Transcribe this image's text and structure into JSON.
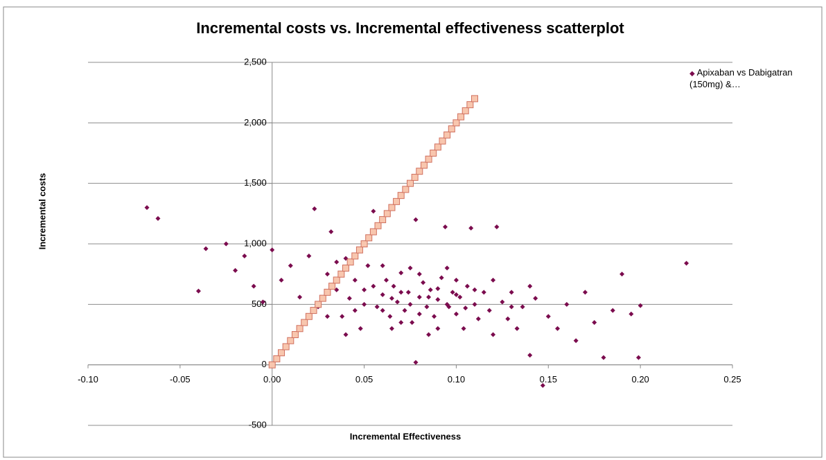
{
  "chart_data": {
    "type": "scatter",
    "title": "Incremental costs vs. Incremental effectiveness scatterplot",
    "x_label": "Incremental  Effectiveness",
    "y_label": "Incremental costs",
    "xlim": [
      -0.1,
      0.25
    ],
    "ylim": [
      -500,
      2500
    ],
    "xticks": [
      {
        "value": -0.1,
        "label": "-0.10"
      },
      -0.05,
      {
        "value": 0.0,
        "label": "0.00"
      },
      0.05,
      {
        "value": 0.1,
        "label": "0.10"
      },
      0.15,
      {
        "value": 0.2,
        "label": "0.20"
      },
      0.25
    ],
    "yticks": [
      -500,
      0,
      500,
      {
        "value": 1000,
        "label": "1,000"
      },
      {
        "value": 1500,
        "label": "1,500"
      },
      {
        "value": 2000,
        "label": "2,000"
      },
      {
        "value": 2500,
        "label": "2,500"
      }
    ],
    "grid": true,
    "legend": "right",
    "series": [
      {
        "name": "Apixaban vs Dabigatran (150mg) &…",
        "color": "#7b0c4e",
        "marker": "diamond",
        "x": [
          -0.068,
          -0.062,
          -0.04,
          -0.036,
          -0.025,
          -0.02,
          -0.015,
          -0.01,
          -0.005,
          0.0,
          0.005,
          0.01,
          0.015,
          0.02,
          0.023,
          0.025,
          0.03,
          0.032,
          0.035,
          0.038,
          0.04,
          0.042,
          0.045,
          0.048,
          0.05,
          0.052,
          0.055,
          0.057,
          0.06,
          0.062,
          0.064,
          0.066,
          0.068,
          0.07,
          0.072,
          0.074,
          0.076,
          0.078,
          0.08,
          0.082,
          0.084,
          0.086,
          0.088,
          0.09,
          0.092,
          0.094,
          0.096,
          0.098,
          0.1,
          0.102,
          0.104,
          0.106,
          0.108,
          0.11,
          0.112,
          0.115,
          0.118,
          0.12,
          0.122,
          0.125,
          0.128,
          0.13,
          0.133,
          0.136,
          0.14,
          0.143,
          0.147,
          0.15,
          0.155,
          0.16,
          0.165,
          0.17,
          0.175,
          0.18,
          0.185,
          0.19,
          0.195,
          0.199,
          0.2,
          0.225,
          0.05,
          0.055,
          0.06,
          0.065,
          0.07,
          0.075,
          0.08,
          0.085,
          0.09,
          0.095,
          0.1,
          0.105,
          0.11,
          0.06,
          0.07,
          0.08,
          0.09,
          0.1,
          0.065,
          0.075,
          0.085,
          0.095,
          0.045,
          0.04,
          0.035,
          0.03,
          0.12,
          0.13,
          0.14,
          0.078
        ],
        "values": [
          1300,
          1210,
          610,
          960,
          1000,
          780,
          900,
          650,
          520,
          950,
          700,
          820,
          560,
          900,
          1290,
          480,
          750,
          1100,
          620,
          400,
          880,
          550,
          700,
          300,
          620,
          820,
          1270,
          480,
          580,
          700,
          400,
          650,
          520,
          760,
          450,
          600,
          350,
          20,
          560,
          680,
          480,
          620,
          400,
          540,
          720,
          1140,
          480,
          600,
          420,
          560,
          300,
          650,
          1130,
          500,
          380,
          600,
          450,
          250,
          1140,
          520,
          380,
          600,
          300,
          480,
          80,
          550,
          -170,
          400,
          300,
          500,
          200,
          600,
          350,
          60,
          450,
          750,
          420,
          60,
          490,
          840,
          500,
          650,
          450,
          550,
          600,
          500,
          420,
          560,
          630,
          500,
          580,
          470,
          620,
          820,
          350,
          750,
          300,
          700,
          300,
          800,
          250,
          800,
          450,
          250,
          850,
          400,
          700,
          480,
          650,
          1200
        ]
      },
      {
        "color": "#f8c6ae",
        "stroke": "#d0705f",
        "marker": "square",
        "x": [
          0,
          0.0025,
          0.005,
          0.0075,
          0.01,
          0.0125,
          0.015,
          0.0175,
          0.02,
          0.0225,
          0.025,
          0.0275,
          0.03,
          0.0325,
          0.035,
          0.0375,
          0.04,
          0.0425,
          0.045,
          0.0475,
          0.05,
          0.0525,
          0.055,
          0.0575,
          0.06,
          0.0625,
          0.065,
          0.0675,
          0.07,
          0.0725,
          0.075,
          0.0775,
          0.08,
          0.0825,
          0.085,
          0.0875,
          0.09,
          0.0925,
          0.095,
          0.0975,
          0.1,
          0.1025,
          0.105,
          0.1075,
          0.11
        ],
        "values": [
          0,
          50,
          100,
          150,
          200,
          250,
          300,
          350,
          400,
          450,
          500,
          550,
          600,
          650,
          700,
          750,
          800,
          850,
          900,
          950,
          1000,
          1050,
          1100,
          1150,
          1200,
          1250,
          1300,
          1350,
          1400,
          1450,
          1500,
          1550,
          1600,
          1650,
          1700,
          1750,
          1800,
          1850,
          1900,
          1950,
          2000,
          2050,
          2100,
          2150,
          2200
        ]
      }
    ]
  }
}
